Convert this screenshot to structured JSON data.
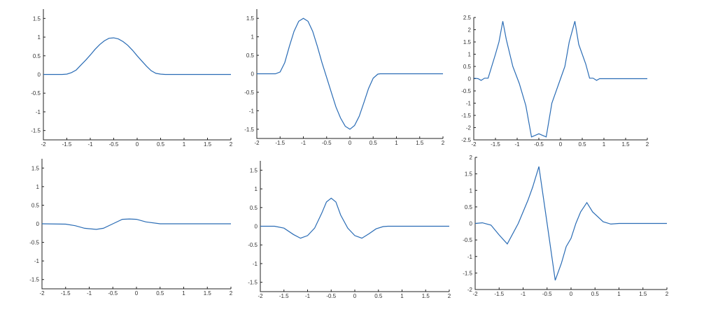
{
  "chart_data": [
    {
      "type": "line",
      "xlim": [
        -2,
        2
      ],
      "ylim": [
        -1.75,
        1.75
      ],
      "xticks": [
        "-2",
        "-1.5",
        "-1",
        "-0.5",
        "0",
        "0.5",
        "1",
        "1.5",
        "2"
      ],
      "yticks": [
        "-1.5",
        "-1",
        "-0.5",
        "0",
        "0.5",
        "1",
        "1.5"
      ],
      "x": [
        -2,
        -1.6,
        -1.5,
        -1.4,
        -1.3,
        -1.2,
        -1.1,
        -1,
        -0.9,
        -0.8,
        -0.7,
        -0.6,
        -0.5,
        -0.4,
        -0.3,
        -0.2,
        -0.1,
        0,
        0.1,
        0.2,
        0.3,
        0.4,
        0.5,
        0.6,
        2
      ],
      "y": [
        0,
        0,
        0.01,
        0.05,
        0.12,
        0.25,
        0.38,
        0.52,
        0.67,
        0.8,
        0.9,
        0.97,
        0.98,
        0.95,
        0.88,
        0.78,
        0.65,
        0.5,
        0.36,
        0.22,
        0.1,
        0.03,
        0.01,
        0,
        0
      ]
    },
    {
      "type": "line",
      "xlim": [
        -2,
        2
      ],
      "ylim": [
        -1.75,
        1.75
      ],
      "xticks": [
        "-2",
        "-1.5",
        "-1",
        "-0.5",
        "0",
        "0.5",
        "1",
        "1.5",
        "2"
      ],
      "yticks": [
        "-1.5",
        "-1",
        "-0.5",
        "0",
        "0.5",
        "1",
        "1.5"
      ],
      "x": [
        -2,
        -1.6,
        -1.5,
        -1.4,
        -1.3,
        -1.2,
        -1.1,
        -1,
        -0.9,
        -0.8,
        -0.7,
        -0.6,
        -0.5,
        -0.4,
        -0.3,
        -0.2,
        -0.1,
        0,
        0.1,
        0.2,
        0.3,
        0.4,
        0.5,
        0.6,
        0.65,
        2
      ],
      "y": [
        0,
        0,
        0.05,
        0.3,
        0.75,
        1.15,
        1.42,
        1.5,
        1.42,
        1.15,
        0.75,
        0.3,
        -0.1,
        -0.5,
        -0.9,
        -1.2,
        -1.42,
        -1.5,
        -1.4,
        -1.15,
        -0.78,
        -0.4,
        -0.12,
        -0.01,
        0,
        0
      ]
    },
    {
      "type": "line",
      "xlim": [
        -2,
        2
      ],
      "ylim": [
        -2.5,
        2.5
      ],
      "xticks": [
        "-2",
        "-1.5",
        "-1",
        "-0.5",
        "0",
        "0.5",
        "1",
        "1.5",
        "2"
      ],
      "yticks": [
        "-2.5",
        "-2",
        "-1.5",
        "-1",
        "-0.5",
        "0",
        "0.5",
        "1",
        "1.5",
        "2",
        "2.5"
      ],
      "x": [
        -2,
        -1.9,
        -1.83,
        -1.75,
        -1.67,
        -1.5,
        -1.42,
        -1.33,
        -1.25,
        -1.1,
        -0.95,
        -0.8,
        -0.67,
        -0.5,
        -0.33,
        -0.2,
        0,
        0.1,
        0.2,
        0.33,
        0.42,
        0.58,
        0.67,
        0.75,
        0.83,
        0.9,
        2
      ],
      "y": [
        0.02,
        0,
        -0.07,
        0.02,
        0.02,
        1.0,
        1.5,
        2.35,
        1.6,
        0.5,
        -0.2,
        -1.1,
        -2.38,
        -2.25,
        -2.38,
        -1.0,
        0,
        0.5,
        1.5,
        2.35,
        1.4,
        0.6,
        0.02,
        0.02,
        -0.07,
        0,
        0
      ]
    },
    {
      "type": "line",
      "xlim": [
        -2,
        2
      ],
      "ylim": [
        -1.75,
        1.75
      ],
      "xticks": [
        "-2",
        "-1.5",
        "-1",
        "-0.5",
        "0",
        "0.5",
        "1",
        "1.5",
        "2"
      ],
      "yticks": [
        "-1.5",
        "-1",
        "-0.5",
        "0",
        "0.5",
        "1",
        "1.5"
      ],
      "x": [
        -2,
        -1.5,
        -1.3,
        -1.1,
        -0.85,
        -0.7,
        -0.5,
        -0.3,
        -0.15,
        0,
        0.2,
        0.5,
        2
      ],
      "y": [
        0,
        -0.01,
        -0.05,
        -0.12,
        -0.15,
        -0.12,
        0,
        0.12,
        0.13,
        0.12,
        0.05,
        0,
        0
      ]
    },
    {
      "type": "line",
      "xlim": [
        -2,
        2
      ],
      "ylim": [
        -1.75,
        1.75
      ],
      "xticks": [
        "-2",
        "-1.5",
        "-1",
        "-0.5",
        "0",
        "0.5",
        "1",
        "1.5",
        "2"
      ],
      "yticks": [
        "-1.5",
        "-1",
        "-0.5",
        "0",
        "0.5",
        "1",
        "1.5"
      ],
      "x": [
        -2,
        -1.7,
        -1.5,
        -1.3,
        -1.15,
        -1.0,
        -0.85,
        -0.7,
        -0.6,
        -0.5,
        -0.4,
        -0.3,
        -0.15,
        0,
        0.15,
        0.3,
        0.45,
        0.6,
        0.7,
        2
      ],
      "y": [
        0,
        0,
        -0.05,
        -0.22,
        -0.32,
        -0.25,
        -0.05,
        0.35,
        0.65,
        0.75,
        0.65,
        0.3,
        -0.05,
        -0.25,
        -0.32,
        -0.2,
        -0.07,
        -0.01,
        0,
        0
      ]
    },
    {
      "type": "line",
      "xlim": [
        -2,
        2
      ],
      "ylim": [
        -2,
        2
      ],
      "xticks": [
        "-2",
        "-1.5",
        "-1",
        "-0.5",
        "0",
        "0.5",
        "1",
        "1.5",
        "2"
      ],
      "yticks": [
        "-2",
        "-1.5",
        "-1",
        "-0.5",
        "0",
        "0.5",
        "1",
        "1.5",
        "2"
      ],
      "x": [
        -2,
        -1.85,
        -1.67,
        -1.5,
        -1.33,
        -1.1,
        -0.9,
        -0.8,
        -0.67,
        -0.5,
        -0.33,
        -0.2,
        -0.1,
        0,
        0.1,
        0.2,
        0.33,
        0.45,
        0.67,
        0.83,
        1,
        2
      ],
      "y": [
        0,
        0.02,
        -0.05,
        -0.35,
        -0.62,
        0,
        0.7,
        1.1,
        1.72,
        0,
        -1.72,
        -1.2,
        -0.7,
        -0.45,
        0,
        0.35,
        0.63,
        0.35,
        0.05,
        -0.02,
        0,
        0
      ]
    }
  ],
  "colors": {
    "line": "#2a6cb5",
    "axis": "#222222"
  }
}
